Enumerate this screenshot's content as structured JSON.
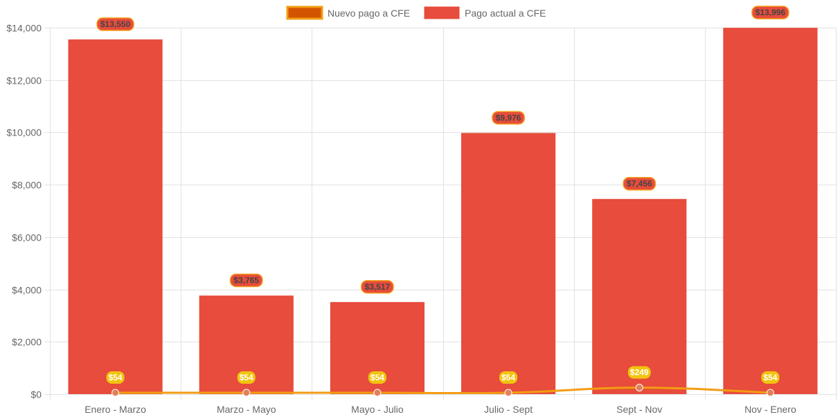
{
  "chart_data": {
    "type": "bar",
    "categories": [
      "Enero - Marzo",
      "Marzo - Mayo",
      "Mayo - Julio",
      "Julio - Sept",
      "Sept - Nov",
      "Nov - Enero"
    ],
    "series": [
      {
        "name": "Nuevo pago a CFE",
        "kind": "line",
        "values": [
          54,
          54,
          54,
          54,
          249,
          54
        ],
        "labels": [
          "$54",
          "$54",
          "$54",
          "$54",
          "$249",
          "$54"
        ],
        "color": "#f39c12",
        "point_color": "#e67e5a",
        "legend_fill": "#d35400",
        "label_bg": "#f1c40f"
      },
      {
        "name": "Pago actual a CFE",
        "kind": "bar",
        "values": [
          13550,
          3765,
          3517,
          9976,
          7456,
          13996
        ],
        "labels": [
          "$13,550",
          "$3,765",
          "$3,517",
          "$9,976",
          "$7,456",
          "$13,996"
        ],
        "color": "#e74c3c",
        "label_border": "#f39c12"
      }
    ],
    "y_ticks": [
      0,
      2000,
      4000,
      6000,
      8000,
      10000,
      12000,
      14000
    ],
    "y_tick_labels": [
      "$0",
      "$2,000",
      "$4,000",
      "$6,000",
      "$8,000",
      "$10,000",
      "$12,000",
      "$14,000"
    ],
    "ylim": [
      0,
      14000
    ],
    "grid": true,
    "legend_position": "top-center",
    "title": "",
    "xlabel": "",
    "ylabel": ""
  }
}
